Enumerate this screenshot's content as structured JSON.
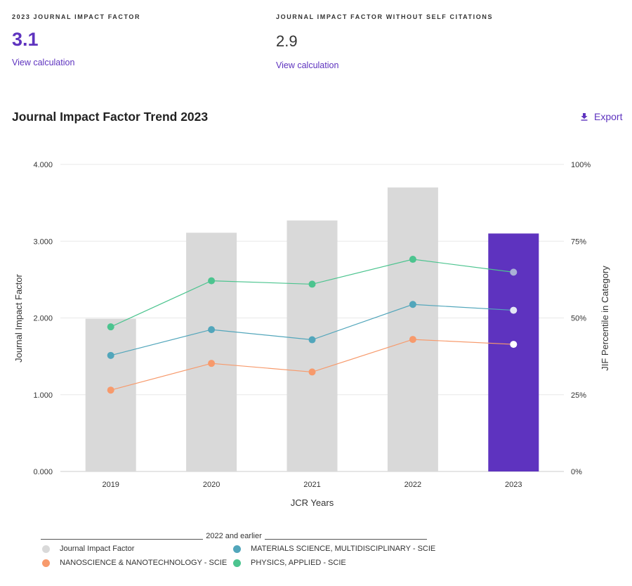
{
  "metrics": {
    "jif": {
      "label": "2023 JOURNAL IMPACT FACTOR",
      "value": "3.1",
      "link": "View calculation"
    },
    "jif_no_self": {
      "label": "JOURNAL IMPACT FACTOR WITHOUT SELF CITATIONS",
      "value": "2.9",
      "link": "View calculation"
    }
  },
  "trend": {
    "title": "Journal Impact Factor Trend 2023",
    "export_label": "Export"
  },
  "colors": {
    "accent": "#5e33bf",
    "bar": "#d9d9d9",
    "bar_current": "#5e33bf",
    "nano": "#f79a6c",
    "materials": "#52a6bb",
    "physics": "#4cc48f"
  },
  "chart_data": {
    "type": "bar",
    "title": "Journal Impact Factor Trend 2023",
    "xlabel": "JCR Years",
    "ylabel": "Journal Impact Factor",
    "y2label": "JIF Percentile in Category",
    "categories": [
      "2019",
      "2020",
      "2021",
      "2022",
      "2023"
    ],
    "ylim": [
      0,
      4
    ],
    "yticks": [
      "0.000",
      "1.000",
      "2.000",
      "3.000",
      "4.000"
    ],
    "y2lim": [
      0,
      100
    ],
    "y2ticks": [
      "0%",
      "25%",
      "50%",
      "75%",
      "100%"
    ],
    "bars": {
      "name": "Journal Impact Factor",
      "values": [
        1.99,
        3.11,
        3.27,
        3.7,
        3.1
      ]
    },
    "series": [
      {
        "name": "NANOSCIENCE & NANOTECHNOLOGY - SCIE",
        "color_key": "nano",
        "values": [
          26.5,
          35.2,
          32.4,
          43.0,
          41.4
        ]
      },
      {
        "name": "MATERIALS SCIENCE, MULTIDISCIPLINARY - SCIE",
        "color_key": "materials",
        "values": [
          37.8,
          46.2,
          42.9,
          54.4,
          52.5
        ]
      },
      {
        "name": "PHYSICS, APPLIED - SCIE",
        "color_key": "physics",
        "values": [
          47.1,
          62.1,
          61.0,
          69.1,
          64.9
        ]
      }
    ],
    "legend": {
      "group_label": "2022 and earlier",
      "items": [
        "Journal Impact Factor",
        "MATERIALS SCIENCE, MULTIDISCIPLINARY - SCIE",
        "NANOSCIENCE & NANOTECHNOLOGY - SCIE",
        "PHYSICS, APPLIED - SCIE"
      ]
    },
    "grid": true
  }
}
